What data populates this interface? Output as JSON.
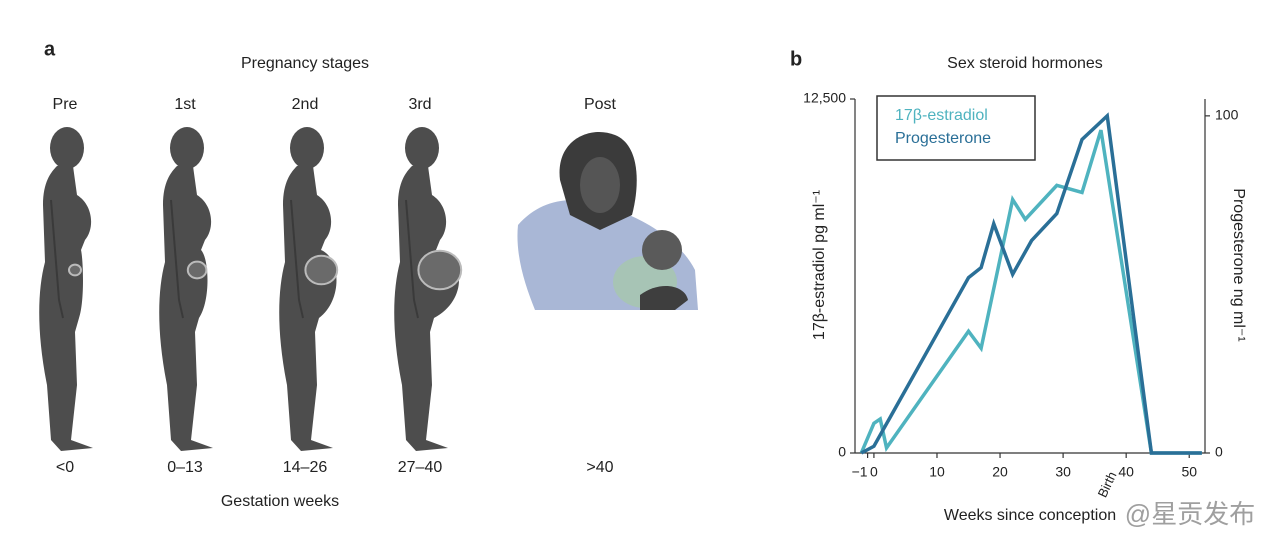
{
  "panel_a": {
    "label": "a",
    "title": "Pregnancy stages",
    "stages": [
      {
        "name": "Pre",
        "weeks": "<0"
      },
      {
        "name": "1st",
        "weeks": "0–13"
      },
      {
        "name": "2nd",
        "weeks": "14–26"
      },
      {
        "name": "3rd",
        "weeks": "27–40"
      },
      {
        "name": "Post",
        "weeks": ">40"
      }
    ],
    "axis_label": "Gestation weeks"
  },
  "chart_data": {
    "type": "line",
    "label": "b",
    "title": "Sex steroid hormones",
    "xlabel": "Weeks since conception",
    "ylabel": "17β-estradiol pg ml⁻¹",
    "y2label": "Progesterone ng ml⁻¹",
    "annotation": "Birth",
    "xlim": [
      -3,
      52.5
    ],
    "xticks": [
      {
        "value": -1,
        "label": "−1"
      },
      0,
      10,
      20,
      30,
      40,
      50
    ],
    "ylim": [
      0,
      12500
    ],
    "yticks": [
      0,
      {
        "value": 12500,
        "label": "12,500"
      }
    ],
    "y2lim": [
      0,
      105
    ],
    "y2ticks": [
      0,
      100
    ],
    "legend": "upper left",
    "series": [
      {
        "name": "17β-estradiol",
        "color": "#4fb3bf",
        "x": [
          -2,
          0,
          1,
          2,
          15,
          17,
          22,
          24,
          29,
          33,
          36,
          44,
          52
        ],
        "values": [
          0,
          1050,
          1200,
          180,
          4300,
          3700,
          8950,
          8250,
          9450,
          9200,
          11400,
          0,
          0
        ]
      },
      {
        "name": "Progesterone",
        "color": "#2a6f97",
        "axis": "y2",
        "x": [
          -2,
          0,
          15,
          17,
          19,
          22,
          25,
          29,
          33,
          37,
          44,
          52
        ],
        "values": [
          0,
          2,
          52,
          55,
          68,
          53,
          63,
          71,
          93,
          100,
          0,
          0
        ]
      }
    ]
  },
  "watermark": "@星贡发布"
}
